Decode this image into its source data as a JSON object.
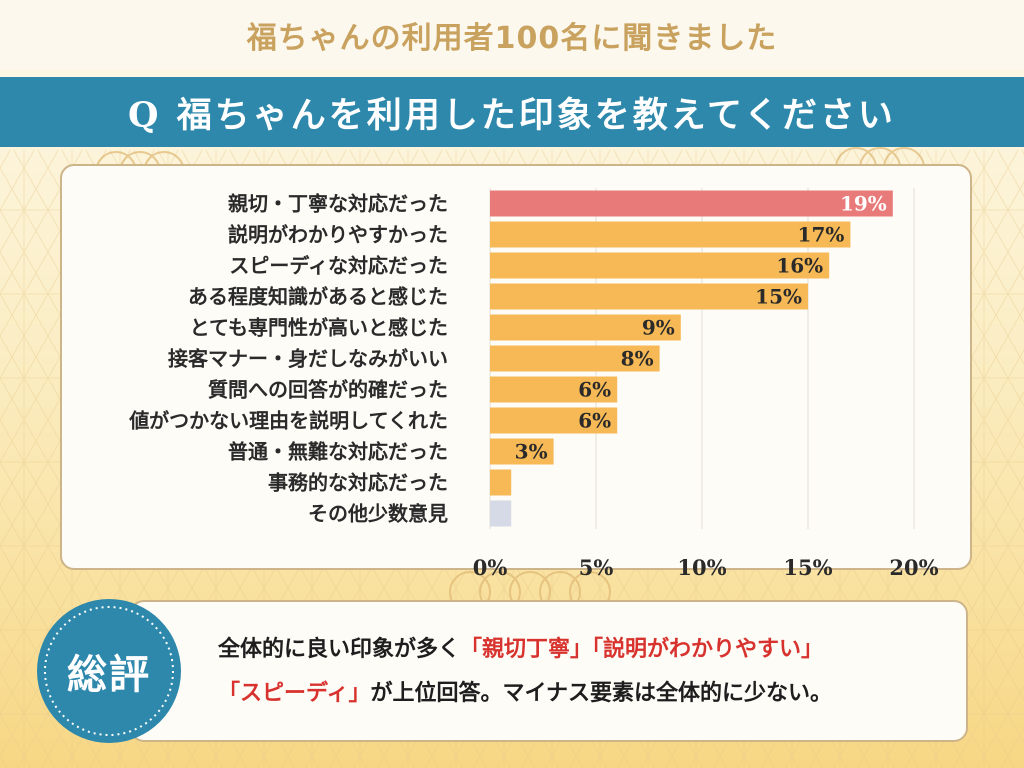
{
  "header": {
    "subtitle": "福ちゃんの利用者100名に聞きました",
    "question": "Q 福ちゃんを利用した印象を教えてください"
  },
  "summary": {
    "badge": "総評",
    "parts": [
      {
        "text": "全体的に良い印象が多く",
        "highlight": false
      },
      {
        "text": "「親切丁寧」「説明がわかりやすい」",
        "highlight": true
      },
      {
        "text": "「スピーディ」",
        "highlight": true
      },
      {
        "text": "が上位回答。マイナス要素は全体的に少ない。",
        "highlight": false
      }
    ]
  },
  "colors": {
    "title_bar": "#2d88ab",
    "top_bar_bar": "#e97a7a",
    "bar": "#f7b955",
    "minor_bar": "#d6d9e6",
    "highlight_text": "#d8322e",
    "badge": "#2d88ab"
  },
  "chart_data": {
    "type": "bar",
    "orientation": "horizontal",
    "title": "Q 福ちゃんを利用した印象を教えてください",
    "xlabel": "",
    "ylabel": "",
    "xlim": [
      0,
      20
    ],
    "grid": true,
    "ticks": [
      {
        "value": 0,
        "label": "0%"
      },
      {
        "value": 5,
        "label": "5%"
      },
      {
        "value": 10,
        "label": "10%"
      },
      {
        "value": 15,
        "label": "15%"
      },
      {
        "value": 20,
        "label": "20%"
      }
    ],
    "categories": [
      "親切・丁寧な対応だった",
      "説明がわかりやすかった",
      "スピーディな対応だった",
      "ある程度知識があると感じた",
      "とても専門性が高いと感じた",
      "接客マナー・身だしなみがいい",
      "質問への回答が的確だった",
      "値がつかない理由を説明してくれた",
      "普通・無難な対応だった",
      "事務的な対応だった",
      "その他少数意見"
    ],
    "values": [
      19,
      17,
      16,
      15,
      9,
      8,
      6,
      6,
      3,
      1,
      1
    ],
    "value_labels": [
      "19%",
      "17%",
      "16%",
      "15%",
      "9%",
      "8%",
      "6%",
      "6%",
      "3%",
      "",
      ""
    ],
    "bar_colors": [
      "#e97a7a",
      "#f7b955",
      "#f7b955",
      "#f7b955",
      "#f7b955",
      "#f7b955",
      "#f7b955",
      "#f7b955",
      "#f7b955",
      "#f7b955",
      "#d6d9e6"
    ]
  }
}
